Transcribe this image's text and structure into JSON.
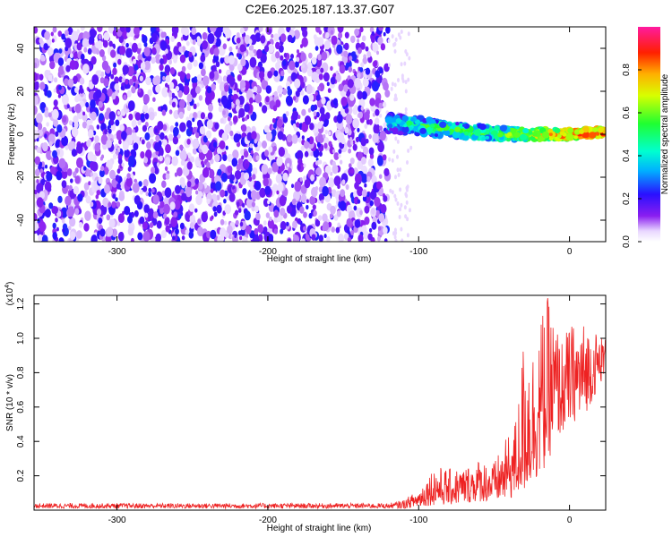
{
  "title": "C2E6.2025.187.13.37.G07",
  "chart_data": [
    {
      "type": "heatmap",
      "name": "spectrogram",
      "xlabel": "Height of straight line (km)",
      "ylabel": "Frequency (Hz)",
      "xlim": [
        -355,
        24
      ],
      "ylim": [
        -50,
        50
      ],
      "xticks": [
        "-300",
        "-200",
        "-100",
        "0"
      ],
      "yticks": [
        "40",
        "20",
        "0",
        "-20",
        "-40"
      ],
      "colorbar": {
        "label": "Normalized spectral amplitude",
        "range": [
          0,
          1
        ],
        "ticks": [
          "0.0",
          "0.2",
          "0.4",
          "0.6",
          "0.8"
        ]
      },
      "signal_track": {
        "x": [
          -120,
          -100,
          -80,
          -60,
          -40,
          -20,
          0,
          20
        ],
        "y": [
          5,
          4,
          2,
          1,
          0,
          0,
          0,
          1
        ],
        "amplitude": [
          0.45,
          0.5,
          0.55,
          0.55,
          0.6,
          0.7,
          0.8,
          0.85
        ]
      },
      "noise_region_x": [
        -355,
        -120
      ],
      "grid": false
    },
    {
      "type": "line",
      "name": "snr",
      "xlabel": "Height of straight line (km)",
      "ylabel": "SNR (10 * v/v)",
      "yscale_label": "(x10",
      "yscale_exponent": "4",
      "yscale_close": ")",
      "xlim": [
        -355,
        24
      ],
      "ylim": [
        0,
        1.25
      ],
      "xticks": [
        "-300",
        "-200",
        "-100",
        "0"
      ],
      "yticks": [
        "0.2",
        "0.4",
        "0.6",
        "0.8",
        "1.0",
        "1.2"
      ],
      "series_color": "#ee2222",
      "envelope": {
        "x": [
          -355,
          -120,
          -110,
          -100,
          -90,
          -80,
          -70,
          -60,
          -50,
          -40,
          -35,
          -30,
          -25,
          -20,
          -15,
          -10,
          -5,
          0,
          10,
          24
        ],
        "upper": [
          0.04,
          0.04,
          0.06,
          0.12,
          0.26,
          0.24,
          0.25,
          0.3,
          0.28,
          0.45,
          0.55,
          1.05,
          0.95,
          1.1,
          1.25,
          1.12,
          1.0,
          1.08,
          1.1,
          1.0
        ],
        "lower": [
          0.01,
          0.01,
          0.01,
          0.02,
          0.03,
          0.03,
          0.04,
          0.05,
          0.05,
          0.06,
          0.08,
          0.1,
          0.15,
          0.2,
          0.25,
          0.4,
          0.45,
          0.5,
          0.55,
          0.8
        ]
      },
      "grid": false
    }
  ]
}
